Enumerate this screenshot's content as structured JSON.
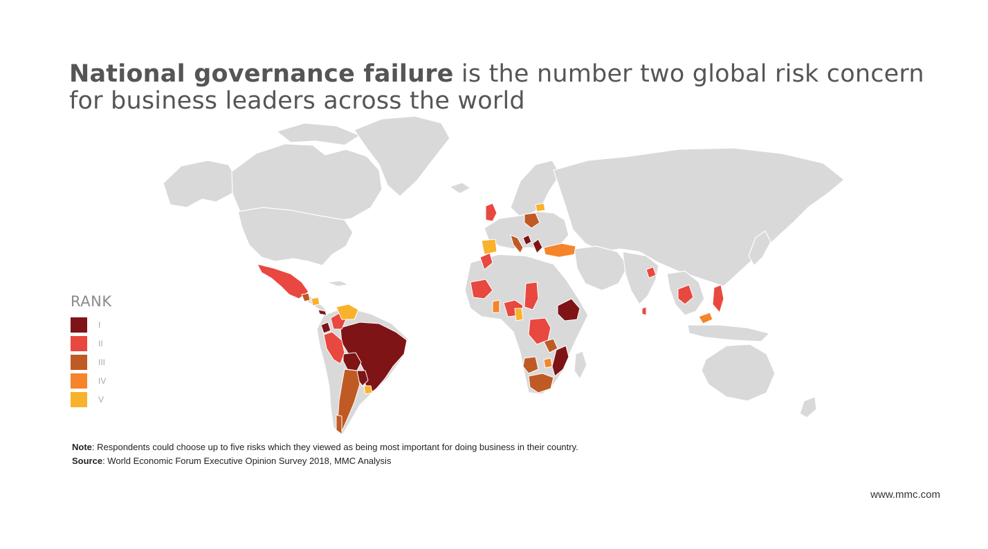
{
  "title": {
    "bold": "National governance failure",
    "rest": " is the number two global risk concern for business leaders across the world"
  },
  "legend": {
    "title": "RANK",
    "items": [
      {
        "label": "I",
        "color": "#7e1416"
      },
      {
        "label": "II",
        "color": "#e8483f"
      },
      {
        "label": "III",
        "color": "#c05a25"
      },
      {
        "label": "IV",
        "color": "#f5842a"
      },
      {
        "label": "V",
        "color": "#f9b22b"
      }
    ]
  },
  "map": {
    "land_color": "#d9d9d9",
    "ranked_countries": [
      {
        "country": "Brazil",
        "rank": "I"
      },
      {
        "country": "Ethiopia",
        "rank": "I"
      },
      {
        "country": "Mozambique",
        "rank": "I"
      },
      {
        "country": "Greece",
        "rank": "I"
      },
      {
        "country": "Bosnia and Herzegovina",
        "rank": "I"
      },
      {
        "country": "Ecuador",
        "rank": "I"
      },
      {
        "country": "Bolivia",
        "rank": "I"
      },
      {
        "country": "Paraguay",
        "rank": "I"
      },
      {
        "country": "Mexico",
        "rank": "II"
      },
      {
        "country": "Peru",
        "rank": "II"
      },
      {
        "country": "United Kingdom",
        "rank": "II"
      },
      {
        "country": "Mali",
        "rank": "II"
      },
      {
        "country": "Nigeria",
        "rank": "II"
      },
      {
        "country": "Chad",
        "rank": "II"
      },
      {
        "country": "DR Congo",
        "rank": "II"
      },
      {
        "country": "Cambodia",
        "rank": "II"
      },
      {
        "country": "Philippines",
        "rank": "II"
      },
      {
        "country": "Bangladesh",
        "rank": "II"
      },
      {
        "country": "Argentina",
        "rank": "III"
      },
      {
        "country": "South Africa",
        "rank": "III"
      },
      {
        "country": "Angola",
        "rank": "III"
      },
      {
        "country": "Poland",
        "rank": "III"
      },
      {
        "country": "Italy",
        "rank": "III"
      },
      {
        "country": "Tanzania",
        "rank": "III"
      },
      {
        "country": "Turkey",
        "rank": "IV"
      },
      {
        "country": "Morocco",
        "rank": "IV"
      },
      {
        "country": "Ghana",
        "rank": "IV"
      },
      {
        "country": "Spain",
        "rank": "V"
      },
      {
        "country": "Venezuela",
        "rank": "V"
      },
      {
        "country": "Uruguay",
        "rank": "V"
      },
      {
        "country": "Lithuania",
        "rank": "V"
      },
      {
        "country": "Cameroon",
        "rank": "V"
      }
    ]
  },
  "note": {
    "label": "Note",
    "text": ": Respondents could choose up to five risks which they viewed as being most important for doing business in their country."
  },
  "source": {
    "label": "Source",
    "text": ": World Economic Forum Executive Opinion Survey 2018, MMC Analysis"
  },
  "footer_url": "www.mmc.com"
}
